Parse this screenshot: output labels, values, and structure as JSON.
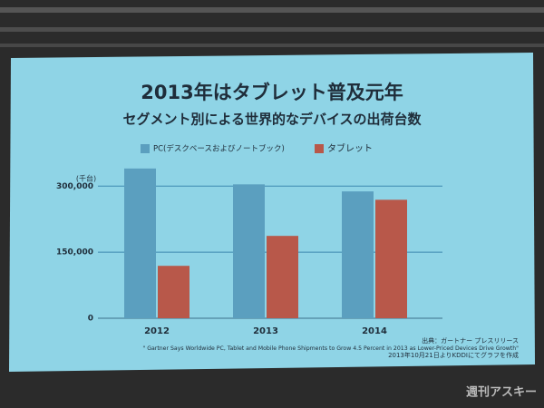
{
  "chart_data": {
    "type": "bar",
    "title": "2013年はタブレット普及元年",
    "subtitle": "セグメント別による世界的なデバイスの出荷台数",
    "y_unit": "(千台)",
    "categories": [
      "2012",
      "2013",
      "2014"
    ],
    "series": [
      {
        "name": "PC(デスクベースおよびノートブック)",
        "color": "#5b9fbf",
        "values": [
          340000,
          304000,
          288000
        ]
      },
      {
        "name": "タブレット",
        "color": "#b8584a",
        "values": [
          119000,
          187000,
          269000
        ]
      }
    ],
    "ylim": [
      0,
      350000
    ],
    "yticks": [
      0,
      {
        "value": 150000,
        "label": "150,000"
      },
      {
        "value": 300000,
        "label": "300,000"
      }
    ],
    "grid": true,
    "source": "出典：ガートナー プレスリリース",
    "source_quote": "\" Gartner Says Worldwide PC, Tablet and Mobile Phone Shipments to Grow 4.5 Percent in 2013 as Lower-Priced Devices Drive Growth\"",
    "source_note": "2013年10月21日よりKDDIにてグラフを作成",
    "watermark": "週刊アスキー"
  }
}
